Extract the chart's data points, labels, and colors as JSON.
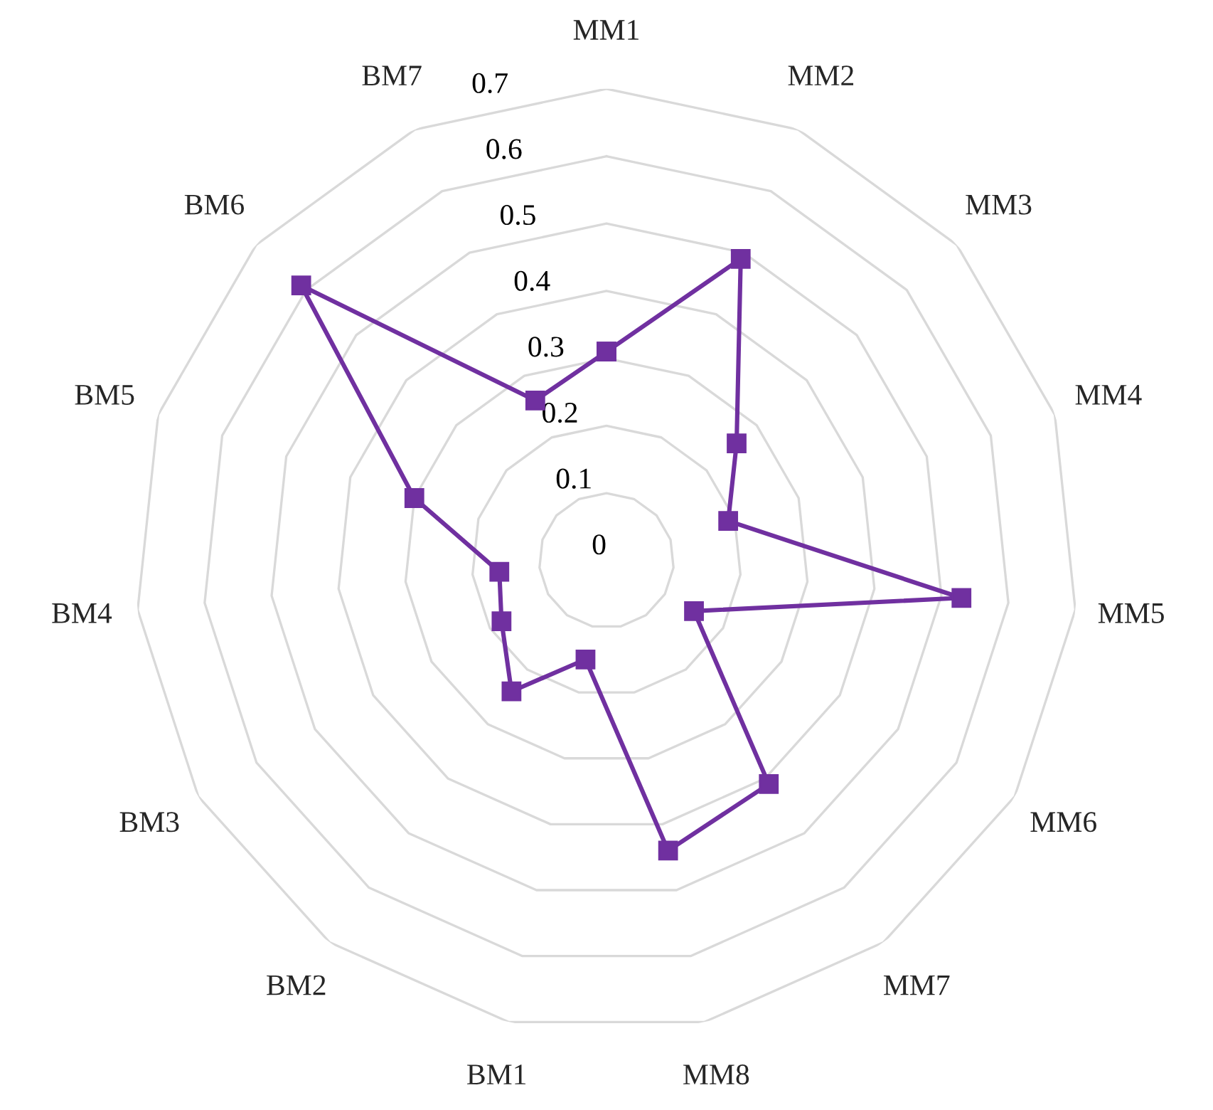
{
  "chart_data": {
    "type": "radar",
    "categories": [
      "MM1",
      "MM2",
      "MM3",
      "MM4",
      "MM5",
      "MM6",
      "MM7",
      "MM8",
      "BM1",
      "BM2",
      "BM3",
      "BM4",
      "BM5",
      "BM6",
      "BM7"
    ],
    "series": [
      {
        "color": "#7030a0",
        "values": [
          0.31,
          0.49,
          0.26,
          0.19,
          0.53,
          0.15,
          0.41,
          0.44,
          0.15,
          0.24,
          0.18,
          0.16,
          0.3,
          0.61,
          0.26
        ]
      }
    ],
    "ylim": [
      0,
      0.7
    ],
    "yticks": [
      0,
      0.1,
      0.2,
      0.3,
      0.4,
      0.5,
      0.6,
      0.7
    ],
    "grid": true,
    "marker": "square",
    "line_style": "solid"
  }
}
